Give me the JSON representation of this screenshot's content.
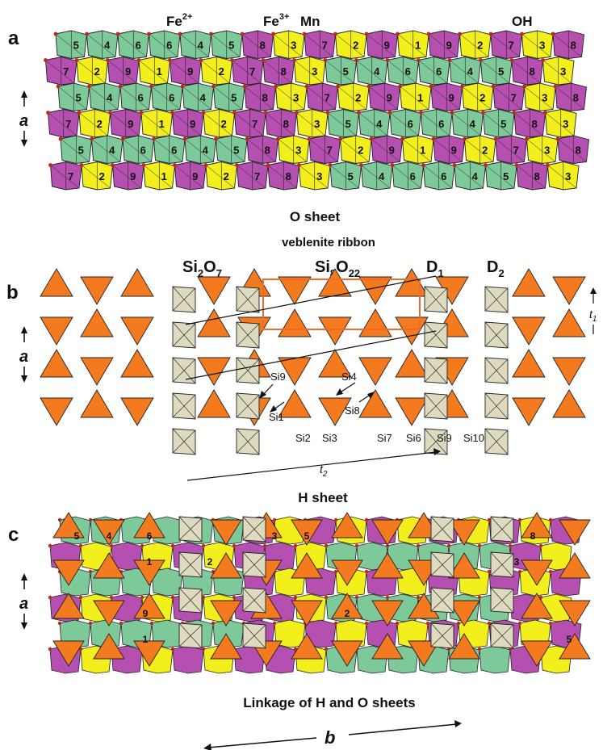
{
  "panels": {
    "a": {
      "letter": "a",
      "cation_labels": {
        "fe2": "Fe",
        "fe2_sup": "2+",
        "fe3": "Fe",
        "fe3_sup": "3+",
        "mn": "Mn",
        "oh": "OH"
      },
      "caption": "O sheet",
      "row_odd": [
        "5",
        "4",
        "6",
        "6",
        "4",
        "5",
        "8",
        "3",
        "7",
        "2",
        "9",
        "1",
        "9",
        "2",
        "7",
        "3",
        "8",
        "5"
      ],
      "row_even": [
        "7",
        "2",
        "9",
        "1",
        "9",
        "2",
        "7",
        "8",
        "3",
        "5",
        "4",
        "6",
        "6",
        "4",
        "5",
        "8",
        "3",
        "7",
        "2"
      ]
    },
    "b": {
      "letter": "b",
      "title": "veblenite ribbon",
      "si2o7": {
        "a": "Si",
        "b": "2",
        "c": "O",
        "d": "7"
      },
      "si8o22": {
        "a": "Si",
        "b": "8",
        "c": "O",
        "d": "22"
      },
      "d1": {
        "a": "D",
        "b": "1"
      },
      "d2": {
        "a": "D",
        "b": "2"
      },
      "site_labels": [
        "Si9",
        "Si4",
        "Si1",
        "Si8",
        "Si2",
        "Si3",
        "Si7",
        "Si6",
        "Si9",
        "Si10"
      ],
      "t1": {
        "a": "t",
        "b": "1"
      },
      "t2": {
        "a": "t",
        "b": "2"
      },
      "caption": "H sheet"
    },
    "c": {
      "letter": "c",
      "row_labels": [
        "5",
        "4",
        "6",
        "1",
        "2",
        "3",
        "9",
        "1",
        "2",
        "5",
        "3",
        "8",
        "5"
      ],
      "caption": "Linkage of H and O sheets"
    }
  },
  "axis_a": "a",
  "axis_b": "b",
  "colors": {
    "green": "#7ec99a",
    "magenta": "#b54fb0",
    "yellow": "#f2ef1c",
    "orange": "#f47a1f",
    "beige": "#dedac0",
    "red_rect": "#f06a2a"
  }
}
